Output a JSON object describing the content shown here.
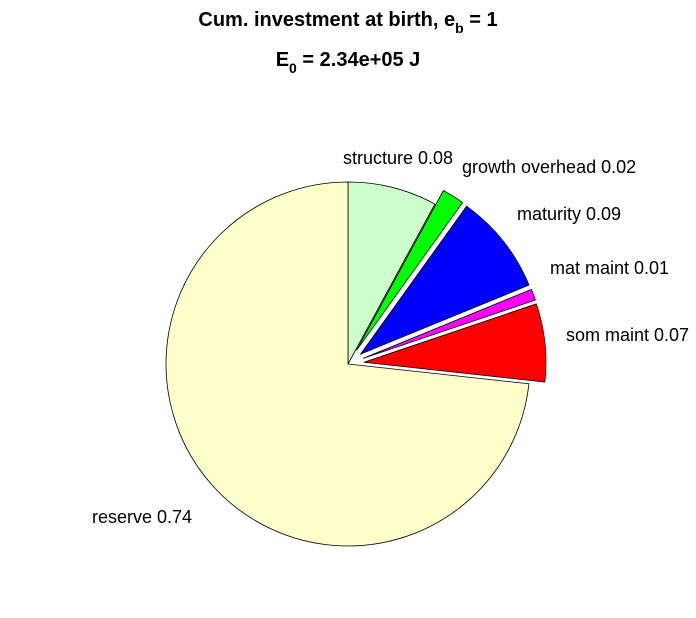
{
  "title": {
    "line1_main": "Cum. investment at birth, e",
    "line1_sub": "b",
    "line1_tail": " = 1",
    "line2_main": "E",
    "line2_sub": "0",
    "line2_tail": " = 2.34e+05 J"
  },
  "chart_data": {
    "type": "pie",
    "title": "Cum. investment at birth, e_b = 1 / E_0 = 2.34e+05 J",
    "start": "12 o'clock",
    "direction": "clockwise",
    "slices": [
      {
        "name": "structure",
        "value": 0.08,
        "label": "structure 0.08",
        "color": "#ccffcc",
        "exploded": false
      },
      {
        "name": "growth overhead",
        "value": 0.02,
        "label": "growth overhead 0.02",
        "color": "#00ff00",
        "exploded": true
      },
      {
        "name": "maturity",
        "value": 0.09,
        "label": "maturity 0.09",
        "color": "#0000ff",
        "exploded": true
      },
      {
        "name": "mat maint",
        "value": 0.01,
        "label": "mat maint 0.01",
        "color": "#ff00ff",
        "exploded": true
      },
      {
        "name": "som maint",
        "value": 0.07,
        "label": "som maint 0.07",
        "color": "#ff0000",
        "exploded": true
      },
      {
        "name": "reserve",
        "value": 0.74,
        "label": "reserve 0.74",
        "color": "#ffffcc",
        "exploded": false
      }
    ]
  }
}
